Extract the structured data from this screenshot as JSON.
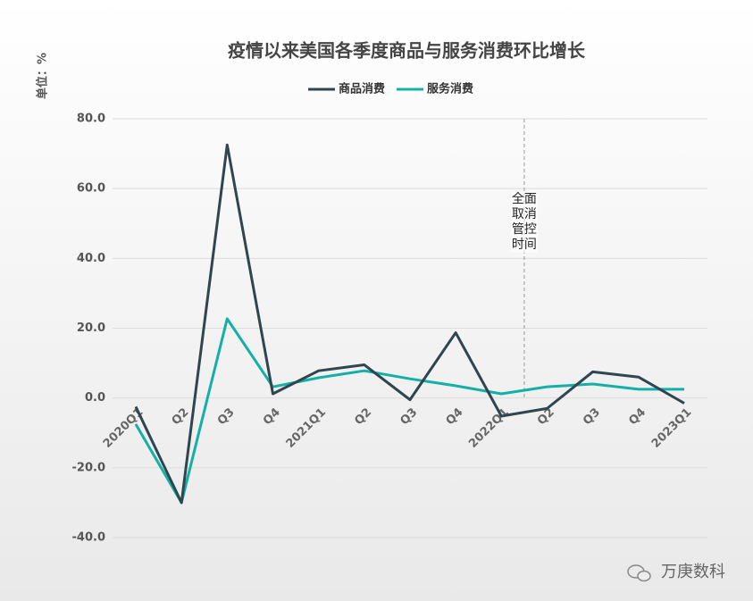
{
  "chart_data": {
    "type": "line",
    "title": "疫情以来美国各季度商品与服务消费环比增长",
    "y_label": "单位：%",
    "categories": [
      "2020Q1",
      "Q2",
      "Q3",
      "Q4",
      "2021Q1",
      "Q2",
      "Q3",
      "Q4",
      "2022Q1",
      "Q2",
      "Q3",
      "Q4",
      "2023Q1"
    ],
    "series": [
      {
        "name": "商品消费",
        "color": "#2f4550",
        "values": [
          -2.5,
          -30,
          72.5,
          1.2,
          7.8,
          9.5,
          -0.5,
          18.7,
          -5.2,
          -3,
          7.5,
          6,
          -1.5
        ]
      },
      {
        "name": "服务消费",
        "color": "#14b0a6",
        "values": [
          -7.5,
          -30,
          22.7,
          3.2,
          5.8,
          7.8,
          5.5,
          3.5,
          1.2,
          3.2,
          4,
          2.5,
          2.5
        ]
      }
    ],
    "ylim": [
      -40,
      80
    ],
    "yticks": [
      {
        "value": -40,
        "label": "-40.0"
      },
      {
        "value": -20,
        "label": "-20.0"
      },
      {
        "value": 0,
        "label": "0.0"
      },
      {
        "value": 20,
        "label": "20.0"
      },
      {
        "value": 40,
        "label": "40.0"
      },
      {
        "value": 60,
        "label": "60.0"
      },
      {
        "value": 80,
        "label": "80.0"
      }
    ],
    "grid": true,
    "annotation": "全面取消管控时间",
    "watermark": "万庚数科"
  }
}
